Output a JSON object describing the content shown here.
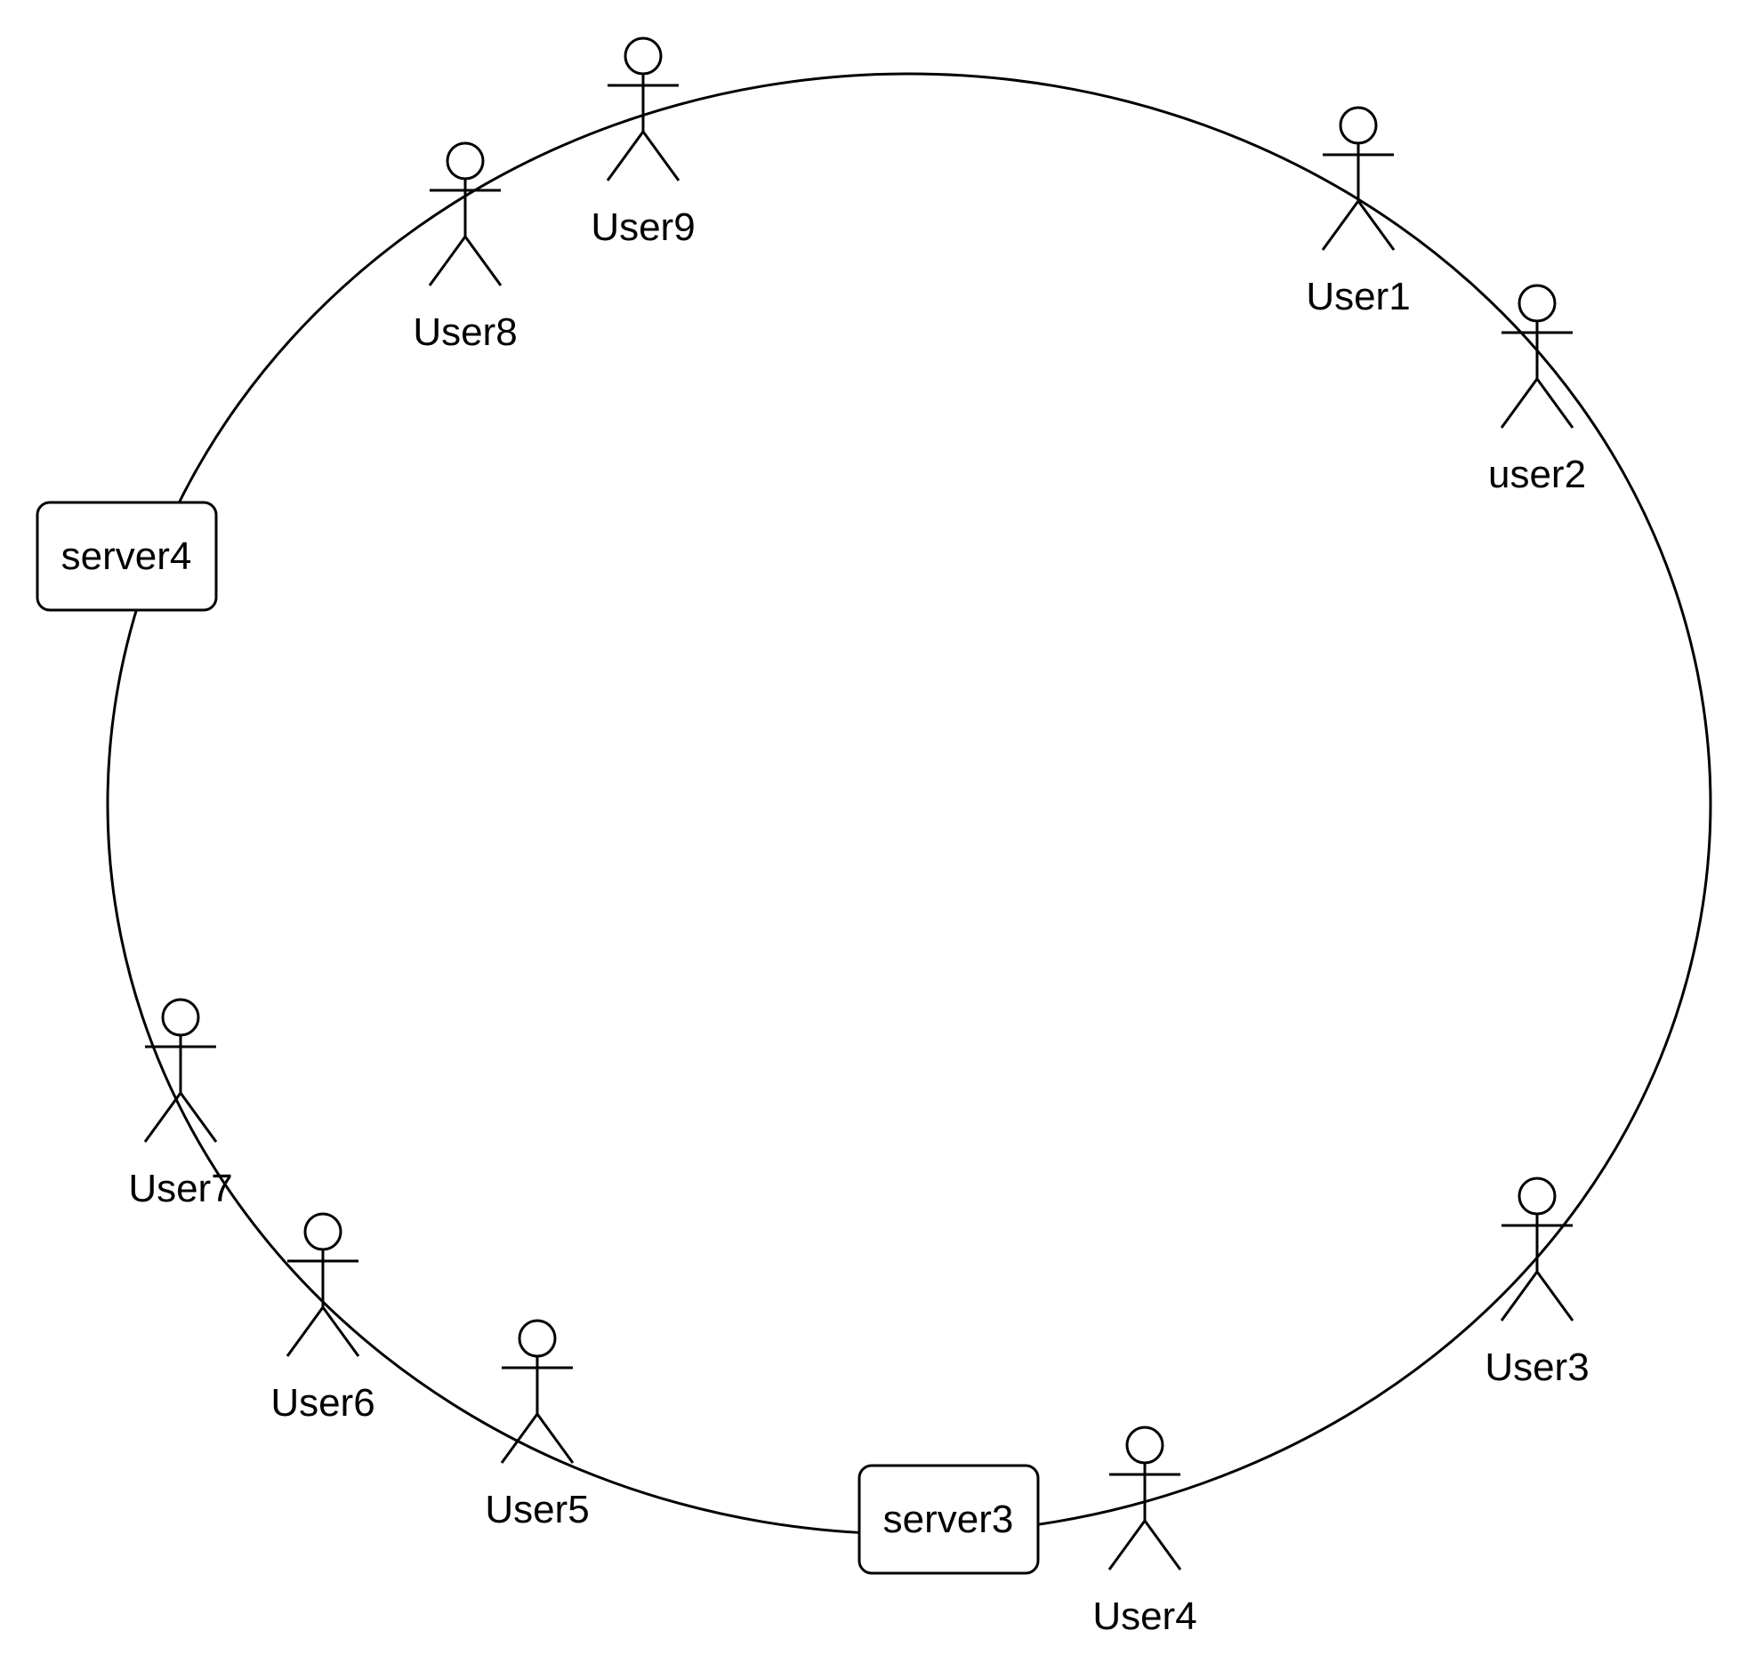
{
  "diagram": {
    "servers": [
      {
        "id": "server4",
        "label": "server4"
      },
      {
        "id": "server3",
        "label": "server3"
      }
    ],
    "users": [
      {
        "id": "user9",
        "label": "User9"
      },
      {
        "id": "user8",
        "label": "User8"
      },
      {
        "id": "user1",
        "label": "User1"
      },
      {
        "id": "user2",
        "label": "user2"
      },
      {
        "id": "user7",
        "label": "User7"
      },
      {
        "id": "user6",
        "label": "User6"
      },
      {
        "id": "user5",
        "label": "User5"
      },
      {
        "id": "user3",
        "label": "User3"
      },
      {
        "id": "user4",
        "label": "User4"
      }
    ]
  }
}
